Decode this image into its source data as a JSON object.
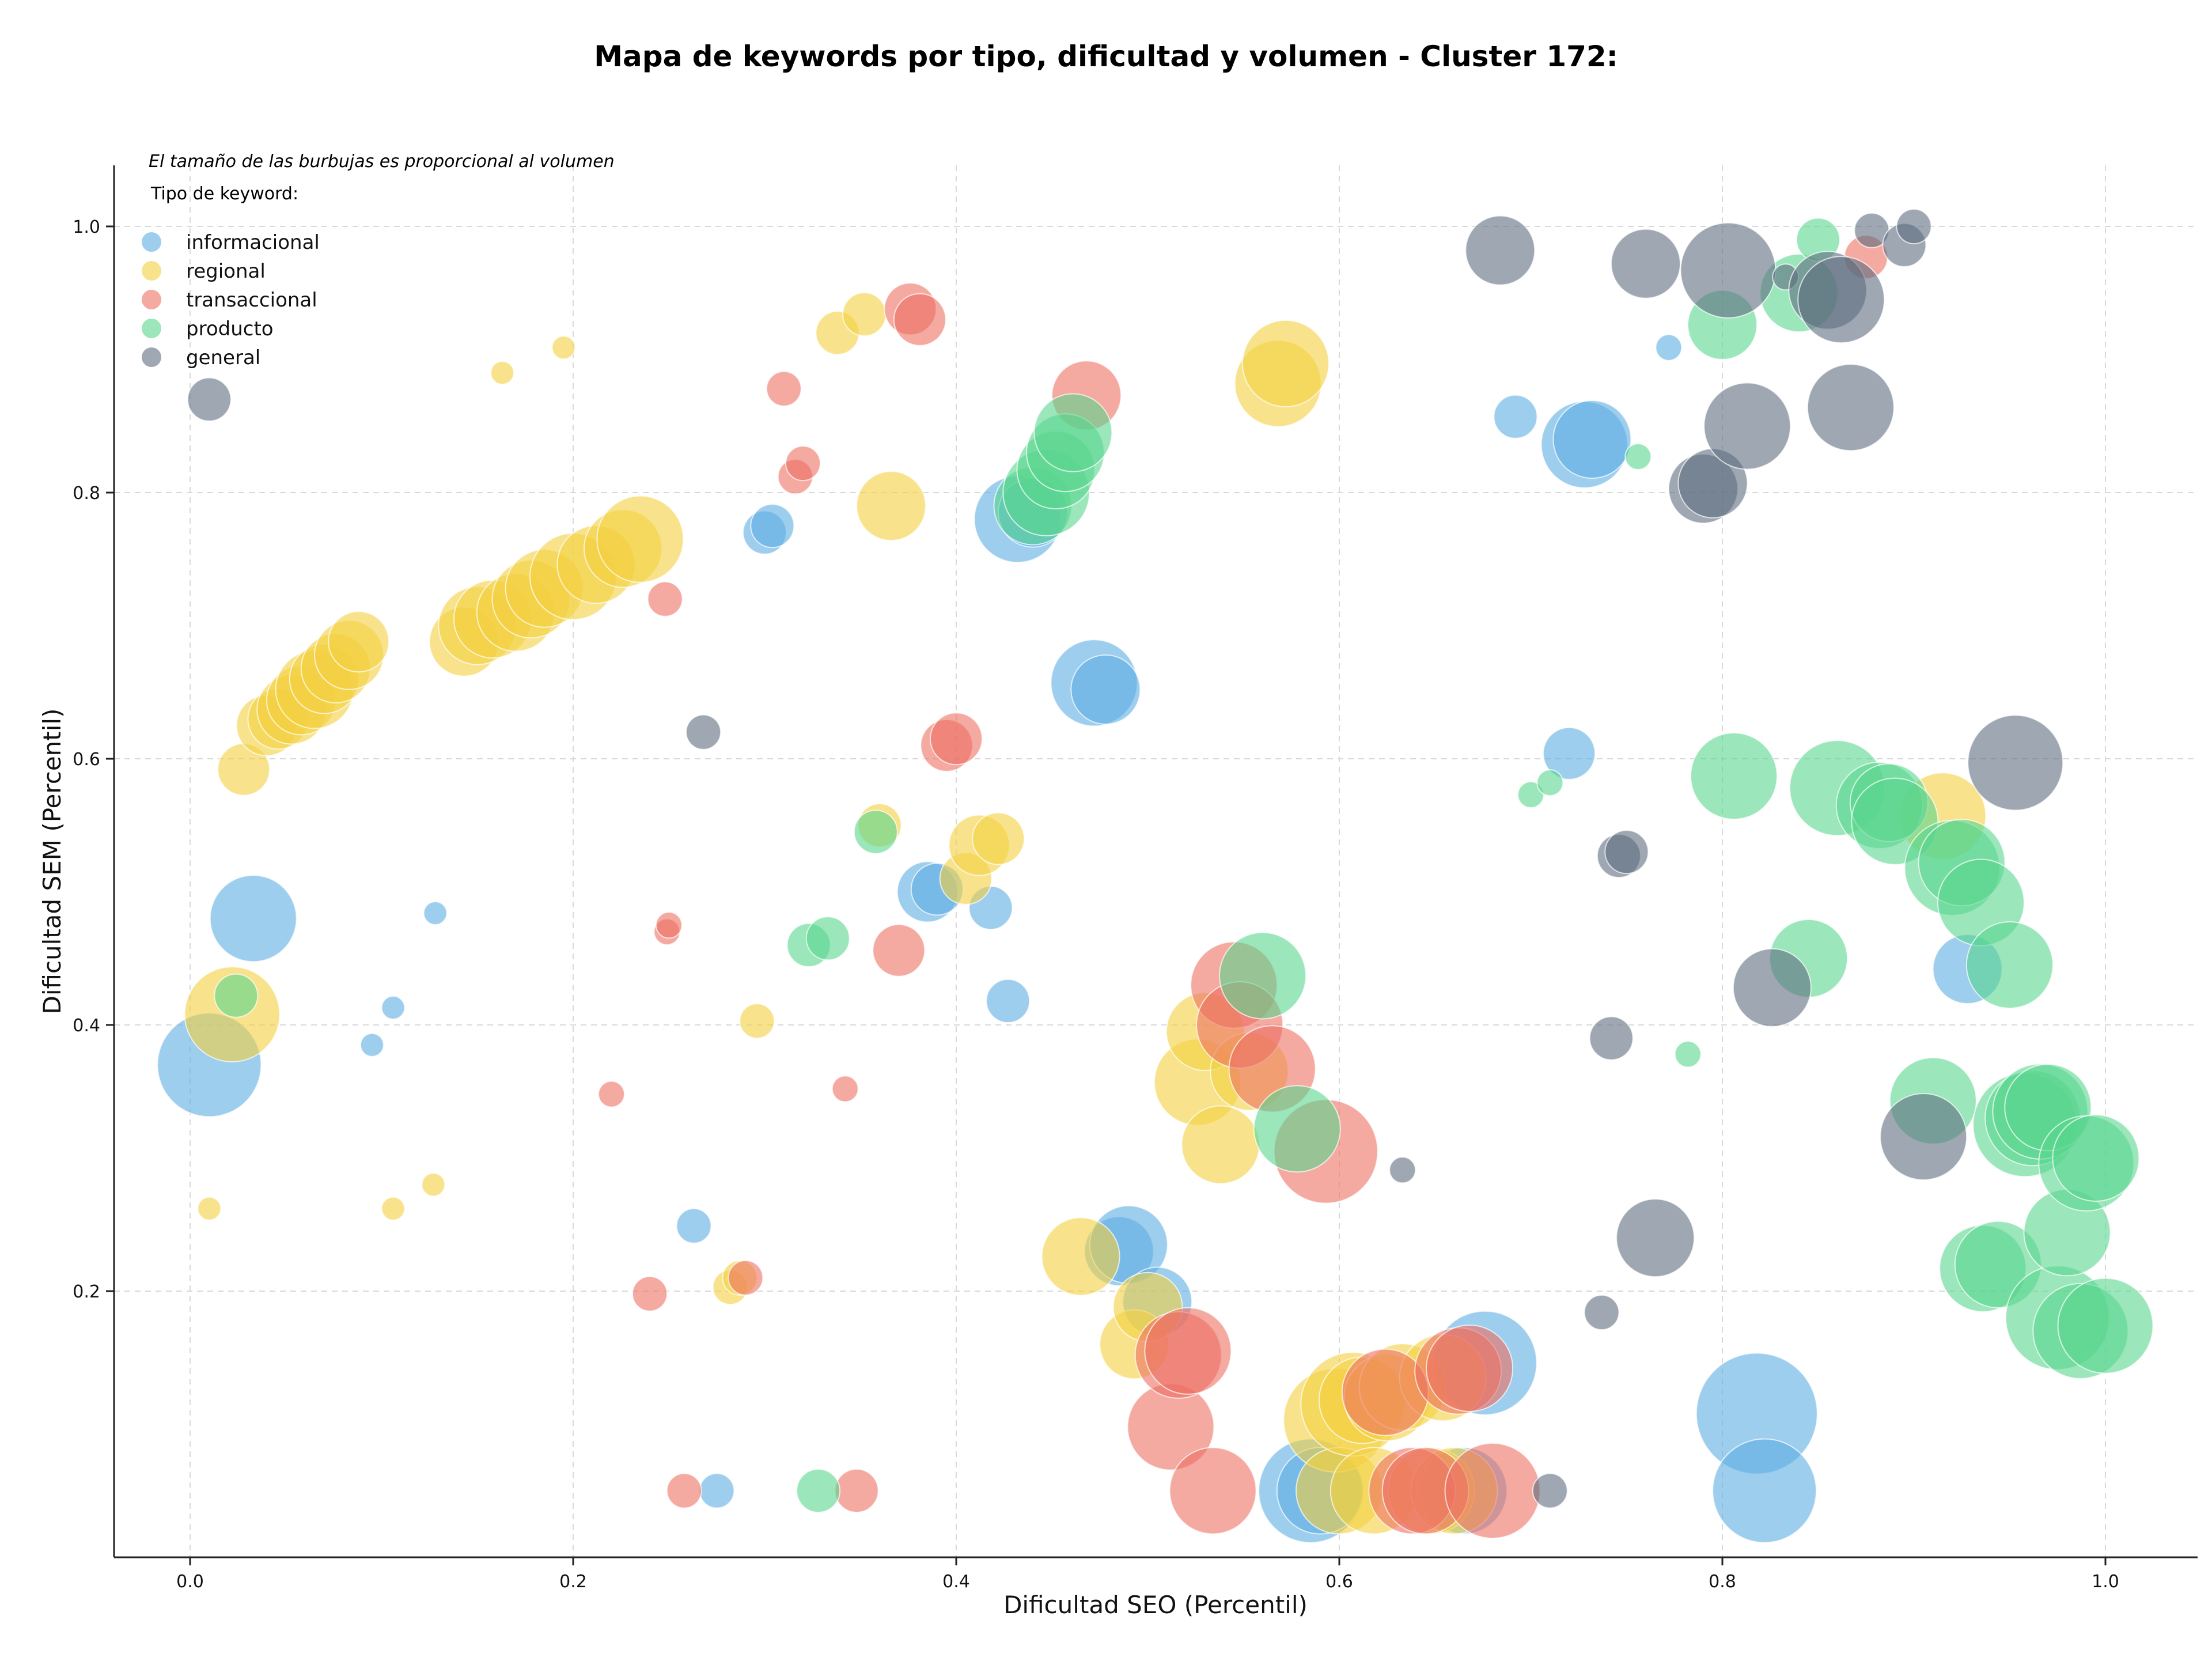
{
  "chart_data": {
    "type": "scatter",
    "title": "Mapa de keywords por tipo, dificultad y volumen - Cluster 172:",
    "xlabel": "Dificultad SEO (Percentil)",
    "ylabel": "Dificultad SEM (Percentil)",
    "note": "El tamaño de las burbujas es proporcional al volumen",
    "legend_title": "Tipo de keyword:",
    "legend_placement": "top-left",
    "grid": true,
    "xlim": [
      -0.04,
      1.05
    ],
    "ylim": [
      0.0,
      1.05
    ],
    "x_ticks": [
      "0.0",
      "0.2",
      "0.4",
      "0.6",
      "0.8",
      "1.0"
    ],
    "y_ticks": [
      "0.2",
      "0.4",
      "0.6",
      "0.8",
      "1.0"
    ],
    "x_tick_values": [
      0.0,
      0.2,
      0.4,
      0.6,
      0.8,
      1.0
    ],
    "y_tick_values": [
      0.2,
      0.4,
      0.6,
      0.8,
      1.0
    ],
    "series": [
      {
        "name": "informacional",
        "color": "#5DADE2",
        "points": [
          {
            "x": 0.01,
            "y": 0.37,
            "v": 6
          },
          {
            "x": 0.033,
            "y": 0.48,
            "v": 5
          },
          {
            "x": 0.095,
            "y": 0.385,
            "v": 1
          },
          {
            "x": 0.106,
            "y": 0.413,
            "v": 1
          },
          {
            "x": 0.128,
            "y": 0.484,
            "v": 1.2
          },
          {
            "x": 0.263,
            "y": 0.249,
            "v": 2
          },
          {
            "x": 0.275,
            "y": 0.05,
            "v": 2
          },
          {
            "x": 0.3,
            "y": 0.77,
            "v": 2.5
          },
          {
            "x": 0.304,
            "y": 0.775,
            "v": 2.5
          },
          {
            "x": 0.385,
            "y": 0.5,
            "v": 3.5
          },
          {
            "x": 0.39,
            "y": 0.502,
            "v": 3
          },
          {
            "x": 0.418,
            "y": 0.488,
            "v": 2.5
          },
          {
            "x": 0.427,
            "y": 0.418,
            "v": 2.5
          },
          {
            "x": 0.432,
            "y": 0.78,
            "v": 5
          },
          {
            "x": 0.44,
            "y": 0.785,
            "v": 4
          },
          {
            "x": 0.472,
            "y": 0.657,
            "v": 5
          },
          {
            "x": 0.478,
            "y": 0.652,
            "v": 4
          },
          {
            "x": 0.485,
            "y": 0.23,
            "v": 4
          },
          {
            "x": 0.49,
            "y": 0.235,
            "v": 4.5
          },
          {
            "x": 0.505,
            "y": 0.192,
            "v": 4
          },
          {
            "x": 0.585,
            "y": 0.05,
            "v": 6
          },
          {
            "x": 0.59,
            "y": 0.05,
            "v": 5
          },
          {
            "x": 0.665,
            "y": 0.05,
            "v": 5
          },
          {
            "x": 0.676,
            "y": 0.146,
            "v": 6
          },
          {
            "x": 0.692,
            "y": 0.857,
            "v": 2.5
          },
          {
            "x": 0.72,
            "y": 0.604,
            "v": 3
          },
          {
            "x": 0.728,
            "y": 0.836,
            "v": 5
          },
          {
            "x": 0.732,
            "y": 0.84,
            "v": 4.5
          },
          {
            "x": 0.772,
            "y": 0.909,
            "v": 1.5
          },
          {
            "x": 0.818,
            "y": 0.108,
            "v": 7
          },
          {
            "x": 0.822,
            "y": 0.05,
            "v": 6
          },
          {
            "x": 0.928,
            "y": 0.442,
            "v": 4
          }
        ]
      },
      {
        "name": "regional",
        "color": "#F4D03F",
        "points": [
          {
            "x": 0.01,
            "y": 0.262,
            "v": 1
          },
          {
            "x": 0.022,
            "y": 0.408,
            "v": 5.5
          },
          {
            "x": 0.028,
            "y": 0.592,
            "v": 3
          },
          {
            "x": 0.04,
            "y": 0.625,
            "v": 3.5
          },
          {
            "x": 0.046,
            "y": 0.63,
            "v": 3.5
          },
          {
            "x": 0.053,
            "y": 0.637,
            "v": 4
          },
          {
            "x": 0.058,
            "y": 0.644,
            "v": 4
          },
          {
            "x": 0.065,
            "y": 0.652,
            "v": 4.5
          },
          {
            "x": 0.07,
            "y": 0.66,
            "v": 4
          },
          {
            "x": 0.076,
            "y": 0.668,
            "v": 4
          },
          {
            "x": 0.083,
            "y": 0.678,
            "v": 4
          },
          {
            "x": 0.088,
            "y": 0.688,
            "v": 3.5
          },
          {
            "x": 0.106,
            "y": 0.262,
            "v": 1
          },
          {
            "x": 0.127,
            "y": 0.28,
            "v": 1
          },
          {
            "x": 0.143,
            "y": 0.688,
            "v": 4
          },
          {
            "x": 0.15,
            "y": 0.7,
            "v": 4.5
          },
          {
            "x": 0.158,
            "y": 0.705,
            "v": 4.5
          },
          {
            "x": 0.163,
            "y": 0.89,
            "v": 1
          },
          {
            "x": 0.17,
            "y": 0.71,
            "v": 4.5
          },
          {
            "x": 0.178,
            "y": 0.72,
            "v": 4.5
          },
          {
            "x": 0.185,
            "y": 0.728,
            "v": 4.5
          },
          {
            "x": 0.195,
            "y": 0.909,
            "v": 1
          },
          {
            "x": 0.2,
            "y": 0.737,
            "v": 5
          },
          {
            "x": 0.212,
            "y": 0.746,
            "v": 4.5
          },
          {
            "x": 0.226,
            "y": 0.758,
            "v": 4.5
          },
          {
            "x": 0.235,
            "y": 0.765,
            "v": 5
          },
          {
            "x": 0.282,
            "y": 0.203,
            "v": 2
          },
          {
            "x": 0.287,
            "y": 0.21,
            "v": 2
          },
          {
            "x": 0.296,
            "y": 0.403,
            "v": 2
          },
          {
            "x": 0.338,
            "y": 0.92,
            "v": 2.5
          },
          {
            "x": 0.352,
            "y": 0.934,
            "v": 2.5
          },
          {
            "x": 0.36,
            "y": 0.55,
            "v": 2.5
          },
          {
            "x": 0.366,
            "y": 0.79,
            "v": 4
          },
          {
            "x": 0.405,
            "y": 0.51,
            "v": 3
          },
          {
            "x": 0.412,
            "y": 0.535,
            "v": 3.5
          },
          {
            "x": 0.422,
            "y": 0.54,
            "v": 3
          },
          {
            "x": 0.465,
            "y": 0.226,
            "v": 4.5
          },
          {
            "x": 0.493,
            "y": 0.16,
            "v": 4
          },
          {
            "x": 0.5,
            "y": 0.188,
            "v": 4
          },
          {
            "x": 0.526,
            "y": 0.357,
            "v": 5
          },
          {
            "x": 0.53,
            "y": 0.395,
            "v": 4.5
          },
          {
            "x": 0.538,
            "y": 0.31,
            "v": 4.5
          },
          {
            "x": 0.553,
            "y": 0.365,
            "v": 4.5
          },
          {
            "x": 0.568,
            "y": 0.882,
            "v": 5
          },
          {
            "x": 0.572,
            "y": 0.897,
            "v": 5
          },
          {
            "x": 0.598,
            "y": 0.103,
            "v": 6
          },
          {
            "x": 0.6,
            "y": 0.05,
            "v": 5
          },
          {
            "x": 0.607,
            "y": 0.115,
            "v": 6
          },
          {
            "x": 0.612,
            "y": 0.118,
            "v": 5
          },
          {
            "x": 0.618,
            "y": 0.05,
            "v": 5
          },
          {
            "x": 0.625,
            "y": 0.12,
            "v": 5
          },
          {
            "x": 0.633,
            "y": 0.128,
            "v": 5
          },
          {
            "x": 0.648,
            "y": 0.05,
            "v": 5
          },
          {
            "x": 0.654,
            "y": 0.135,
            "v": 5
          },
          {
            "x": 0.66,
            "y": 0.05,
            "v": 5
          },
          {
            "x": 0.915,
            "y": 0.557,
            "v": 5
          }
        ]
      },
      {
        "name": "transaccional",
        "color": "#EC7063",
        "points": [
          {
            "x": 0.22,
            "y": 0.348,
            "v": 1.5
          },
          {
            "x": 0.24,
            "y": 0.198,
            "v": 2
          },
          {
            "x": 0.248,
            "y": 0.72,
            "v": 2
          },
          {
            "x": 0.249,
            "y": 0.47,
            "v": 1.5
          },
          {
            "x": 0.25,
            "y": 0.475,
            "v": 1.5
          },
          {
            "x": 0.258,
            "y": 0.05,
            "v": 2
          },
          {
            "x": 0.29,
            "y": 0.21,
            "v": 2
          },
          {
            "x": 0.31,
            "y": 0.878,
            "v": 2
          },
          {
            "x": 0.316,
            "y": 0.812,
            "v": 2
          },
          {
            "x": 0.32,
            "y": 0.822,
            "v": 2
          },
          {
            "x": 0.342,
            "y": 0.352,
            "v": 1.5
          },
          {
            "x": 0.348,
            "y": 0.05,
            "v": 2.5
          },
          {
            "x": 0.37,
            "y": 0.456,
            "v": 3
          },
          {
            "x": 0.376,
            "y": 0.938,
            "v": 3
          },
          {
            "x": 0.381,
            "y": 0.93,
            "v": 3
          },
          {
            "x": 0.395,
            "y": 0.61,
            "v": 3
          },
          {
            "x": 0.4,
            "y": 0.615,
            "v": 3
          },
          {
            "x": 0.468,
            "y": 0.873,
            "v": 4
          },
          {
            "x": 0.512,
            "y": 0.098,
            "v": 5
          },
          {
            "x": 0.516,
            "y": 0.152,
            "v": 5
          },
          {
            "x": 0.521,
            "y": 0.155,
            "v": 5
          },
          {
            "x": 0.534,
            "y": 0.05,
            "v": 5
          },
          {
            "x": 0.545,
            "y": 0.43,
            "v": 5
          },
          {
            "x": 0.548,
            "y": 0.4,
            "v": 5
          },
          {
            "x": 0.565,
            "y": 0.367,
            "v": 5
          },
          {
            "x": 0.593,
            "y": 0.305,
            "v": 6
          },
          {
            "x": 0.624,
            "y": 0.124,
            "v": 5
          },
          {
            "x": 0.638,
            "y": 0.05,
            "v": 5
          },
          {
            "x": 0.645,
            "y": 0.05,
            "v": 5
          },
          {
            "x": 0.662,
            "y": 0.14,
            "v": 5
          },
          {
            "x": 0.668,
            "y": 0.142,
            "v": 5
          },
          {
            "x": 0.68,
            "y": 0.05,
            "v": 5.5
          },
          {
            "x": 0.875,
            "y": 0.977,
            "v": 2.5
          }
        ]
      },
      {
        "name": "producto",
        "color": "#58D68D",
        "points": [
          {
            "x": 0.024,
            "y": 0.422,
            "v": 2.5
          },
          {
            "x": 0.328,
            "y": 0.05,
            "v": 2.5
          },
          {
            "x": 0.323,
            "y": 0.46,
            "v": 2.5
          },
          {
            "x": 0.333,
            "y": 0.465,
            "v": 2.5
          },
          {
            "x": 0.358,
            "y": 0.545,
            "v": 2.5
          },
          {
            "x": 0.44,
            "y": 0.79,
            "v": 4.5
          },
          {
            "x": 0.447,
            "y": 0.8,
            "v": 5
          },
          {
            "x": 0.452,
            "y": 0.817,
            "v": 4.5
          },
          {
            "x": 0.457,
            "y": 0.83,
            "v": 4.5
          },
          {
            "x": 0.461,
            "y": 0.845,
            "v": 4.5
          },
          {
            "x": 0.56,
            "y": 0.437,
            "v": 5
          },
          {
            "x": 0.578,
            "y": 0.322,
            "v": 5
          },
          {
            "x": 0.7,
            "y": 0.573,
            "v": 1.5
          },
          {
            "x": 0.71,
            "y": 0.582,
            "v": 1.5
          },
          {
            "x": 0.756,
            "y": 0.827,
            "v": 1.5
          },
          {
            "x": 0.782,
            "y": 0.378,
            "v": 1.5
          },
          {
            "x": 0.8,
            "y": 0.926,
            "v": 4
          },
          {
            "x": 0.806,
            "y": 0.587,
            "v": 5
          },
          {
            "x": 0.84,
            "y": 0.95,
            "v": 4.5
          },
          {
            "x": 0.845,
            "y": 0.45,
            "v": 4.5
          },
          {
            "x": 0.85,
            "y": 0.99,
            "v": 2.5
          },
          {
            "x": 0.86,
            "y": 0.578,
            "v": 5.5
          },
          {
            "x": 0.882,
            "y": 0.565,
            "v": 5
          },
          {
            "x": 0.887,
            "y": 0.567,
            "v": 4.5
          },
          {
            "x": 0.89,
            "y": 0.553,
            "v": 5
          },
          {
            "x": 0.91,
            "y": 0.343,
            "v": 5
          },
          {
            "x": 0.92,
            "y": 0.518,
            "v": 5.5
          },
          {
            "x": 0.925,
            "y": 0.522,
            "v": 5
          },
          {
            "x": 0.935,
            "y": 0.492,
            "v": 5
          },
          {
            "x": 0.936,
            "y": 0.217,
            "v": 5
          },
          {
            "x": 0.944,
            "y": 0.22,
            "v": 5
          },
          {
            "x": 0.95,
            "y": 0.445,
            "v": 5
          },
          {
            "x": 0.958,
            "y": 0.325,
            "v": 6
          },
          {
            "x": 0.962,
            "y": 0.33,
            "v": 5.5
          },
          {
            "x": 0.966,
            "y": 0.335,
            "v": 5.5
          },
          {
            "x": 0.97,
            "y": 0.338,
            "v": 5
          },
          {
            "x": 0.975,
            "y": 0.18,
            "v": 6
          },
          {
            "x": 0.98,
            "y": 0.244,
            "v": 5
          },
          {
            "x": 0.987,
            "y": 0.17,
            "v": 5.5
          },
          {
            "x": 0.99,
            "y": 0.296,
            "v": 5.5
          },
          {
            "x": 0.995,
            "y": 0.3,
            "v": 5
          },
          {
            "x": 1.0,
            "y": 0.174,
            "v": 5.5
          }
        ]
      },
      {
        "name": "general",
        "color": "#5D6D7E",
        "points": [
          {
            "x": 0.01,
            "y": 0.87,
            "v": 2.5
          },
          {
            "x": 0.268,
            "y": 0.62,
            "v": 2
          },
          {
            "x": 0.633,
            "y": 0.291,
            "v": 1.5
          },
          {
            "x": 0.684,
            "y": 0.982,
            "v": 4
          },
          {
            "x": 0.71,
            "y": 0.05,
            "v": 2
          },
          {
            "x": 0.737,
            "y": 0.184,
            "v": 2
          },
          {
            "x": 0.742,
            "y": 0.39,
            "v": 2.5
          },
          {
            "x": 0.746,
            "y": 0.527,
            "v": 2.5
          },
          {
            "x": 0.75,
            "y": 0.53,
            "v": 2.5
          },
          {
            "x": 0.76,
            "y": 0.972,
            "v": 4
          },
          {
            "x": 0.765,
            "y": 0.24,
            "v": 4.5
          },
          {
            "x": 0.79,
            "y": 0.803,
            "v": 4
          },
          {
            "x": 0.795,
            "y": 0.807,
            "v": 4
          },
          {
            "x": 0.803,
            "y": 0.967,
            "v": 5.5
          },
          {
            "x": 0.813,
            "y": 0.85,
            "v": 5
          },
          {
            "x": 0.826,
            "y": 0.428,
            "v": 4.5
          },
          {
            "x": 0.833,
            "y": 0.962,
            "v": 1.5
          },
          {
            "x": 0.855,
            "y": 0.952,
            "v": 4.5
          },
          {
            "x": 0.862,
            "y": 0.945,
            "v": 5
          },
          {
            "x": 0.867,
            "y": 0.864,
            "v": 5
          },
          {
            "x": 0.878,
            "y": 0.997,
            "v": 2
          },
          {
            "x": 0.895,
            "y": 0.986,
            "v": 2.5
          },
          {
            "x": 0.9,
            "y": 1.0,
            "v": 2
          },
          {
            "x": 0.905,
            "y": 0.316,
            "v": 5
          },
          {
            "x": 0.953,
            "y": 0.597,
            "v": 5.5
          }
        ]
      }
    ]
  }
}
